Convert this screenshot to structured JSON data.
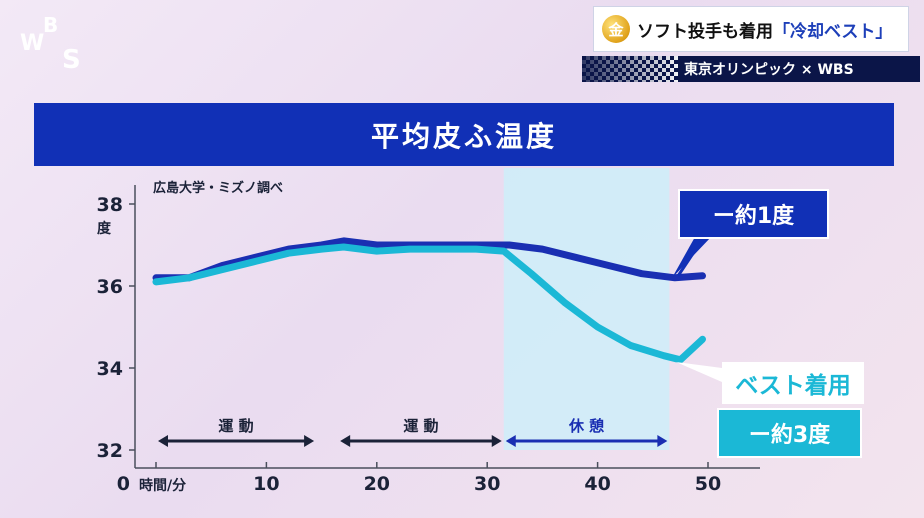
{
  "logo": {
    "text": "WBS"
  },
  "headline": {
    "badge": "金",
    "text_before": "ソフト投手も着用",
    "text_accent": "「冷却ベスト」"
  },
  "subbar": {
    "text": "東京オリンピック × WBS"
  },
  "chart_data": {
    "type": "line",
    "title": "平均皮ふ温度",
    "source": "広島大学・ミズノ調べ",
    "xlabel": "時間/分",
    "ylabel": "度",
    "xlim": [
      0,
      50
    ],
    "ylim": [
      32,
      38
    ],
    "x_ticks": [
      0,
      10,
      20,
      30,
      40,
      50
    ],
    "y_ticks": [
      32,
      34,
      36,
      38
    ],
    "x_tick_labels": [
      "0",
      "10",
      "20",
      "30",
      "40",
      "50"
    ],
    "y_tick_labels": [
      "32",
      "34",
      "36",
      "38"
    ],
    "series": [
      {
        "color": "#1a2fb2",
        "x": [
          0,
          3,
          6,
          9,
          12,
          15,
          17,
          20,
          23,
          26,
          29,
          32,
          35,
          38,
          41,
          44,
          47,
          49.5
        ],
        "y": [
          36.2,
          36.2,
          36.5,
          36.7,
          36.9,
          37.0,
          37.1,
          37.0,
          37.0,
          37.0,
          37.0,
          37.0,
          36.9,
          36.7,
          36.5,
          36.3,
          36.2,
          36.25
        ]
      },
      {
        "color": "#1bb8d6",
        "x": [
          0,
          3,
          6,
          9,
          12,
          15,
          17,
          20,
          23,
          26,
          29,
          31.5,
          34,
          37,
          40,
          43,
          46,
          47.5,
          49.5
        ],
        "y": [
          36.1,
          36.2,
          36.4,
          36.6,
          36.8,
          36.9,
          36.95,
          36.85,
          36.9,
          36.9,
          36.9,
          36.85,
          36.3,
          35.6,
          35.0,
          34.55,
          34.3,
          34.2,
          34.7
        ]
      }
    ],
    "periods": [
      {
        "label": "運 動",
        "start": 0,
        "end": 14.5,
        "color": "#1b2238"
      },
      {
        "label": "運 動",
        "start": 16.5,
        "end": 31.5,
        "color": "#1b2238"
      },
      {
        "label": "休 憩",
        "start": 31.5,
        "end": 46.5,
        "color": "#1a2fb2"
      }
    ],
    "shaded_region": [
      31.5,
      46.5
    ],
    "annotations": {
      "top": "ー約1度",
      "vest": "ベスト着用",
      "bottom": "ー約3度"
    }
  }
}
